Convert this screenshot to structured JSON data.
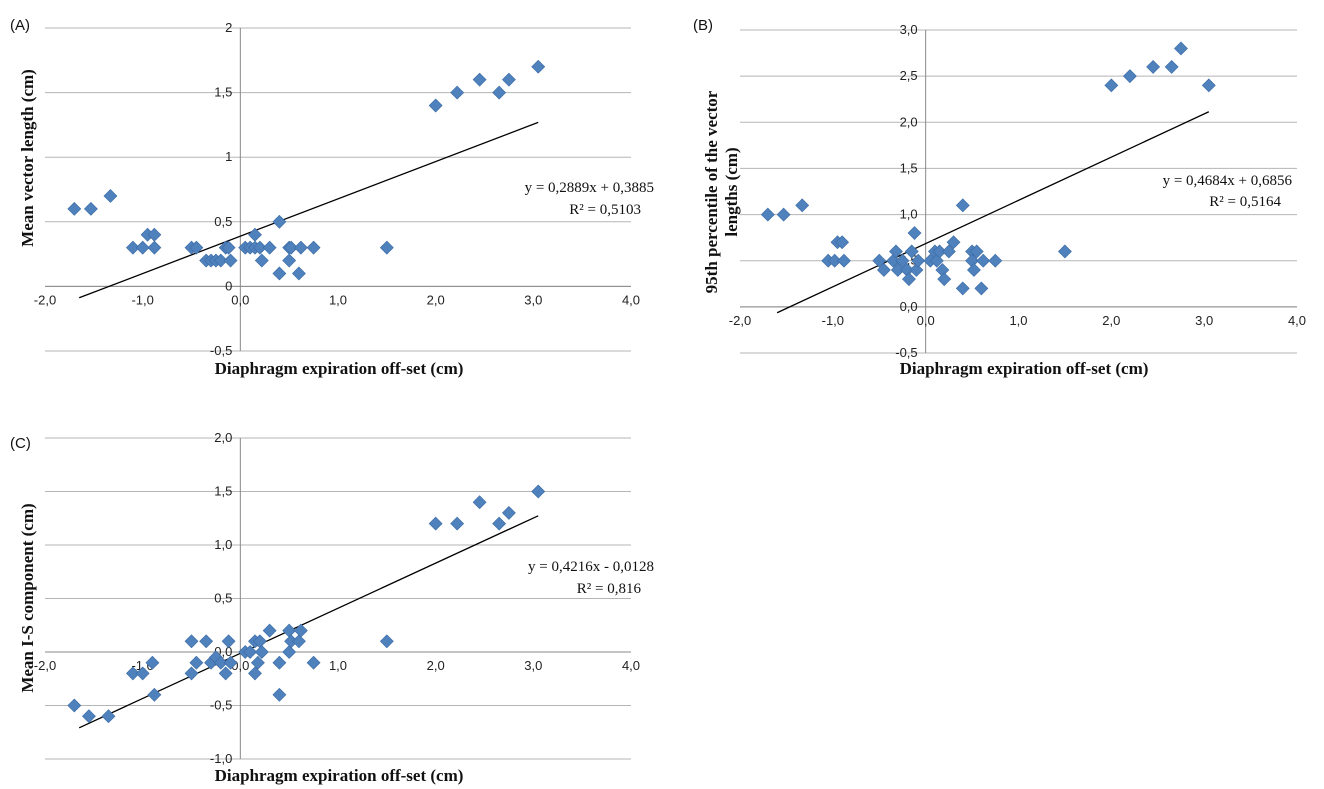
{
  "chart_data": [
    {
      "id": "A",
      "type": "scatter",
      "panel_label": "(A)",
      "xlabel": "Diaphragm  expiration off-set (cm)",
      "ylabel": "Mean vector length (cm)",
      "xlim": [
        -2,
        4
      ],
      "ylim": [
        -0.5,
        2
      ],
      "xticks": [
        "-2,0",
        "-1,0",
        "0,0",
        "1,0",
        "2,0",
        "3,0",
        "4,0"
      ],
      "yticks": [
        "-0,5",
        "0",
        "0,5",
        "1",
        "1,5",
        "2"
      ],
      "equation": "y = 0,2889x + 0,3885",
      "r2": "R² = 0,5103",
      "trendline": {
        "slope": 0.2889,
        "intercept": 0.3885,
        "x_range": [
          -1.65,
          3.05
        ]
      },
      "points": [
        [
          -1.7,
          0.6
        ],
        [
          -1.53,
          0.6
        ],
        [
          -1.33,
          0.7
        ],
        [
          -1.1,
          0.3
        ],
        [
          -1.0,
          0.3
        ],
        [
          -0.95,
          0.4
        ],
        [
          -0.88,
          0.4
        ],
        [
          -0.88,
          0.3
        ],
        [
          -0.5,
          0.3
        ],
        [
          -0.45,
          0.3
        ],
        [
          -0.35,
          0.2
        ],
        [
          -0.3,
          0.2
        ],
        [
          -0.25,
          0.2
        ],
        [
          -0.2,
          0.2
        ],
        [
          -0.15,
          0.3
        ],
        [
          -0.12,
          0.3
        ],
        [
          -0.1,
          0.2
        ],
        [
          0.05,
          0.3
        ],
        [
          0.1,
          0.3
        ],
        [
          0.15,
          0.4
        ],
        [
          0.15,
          0.3
        ],
        [
          0.2,
          0.3
        ],
        [
          0.22,
          0.2
        ],
        [
          0.3,
          0.3
        ],
        [
          0.4,
          0.5
        ],
        [
          0.4,
          0.1
        ],
        [
          0.5,
          0.3
        ],
        [
          0.5,
          0.2
        ],
        [
          0.52,
          0.3
        ],
        [
          0.6,
          0.1
        ],
        [
          0.62,
          0.3
        ],
        [
          0.75,
          0.3
        ],
        [
          1.5,
          0.3
        ],
        [
          2.0,
          1.4
        ],
        [
          2.22,
          1.5
        ],
        [
          2.45,
          1.6
        ],
        [
          2.65,
          1.5
        ],
        [
          2.75,
          1.6
        ],
        [
          3.05,
          1.7
        ]
      ]
    },
    {
      "id": "B",
      "type": "scatter",
      "panel_label": "(B)",
      "xlabel": "Diaphragm  expiration off-set (cm)",
      "ylabel_lines": [
        "95th percentile of the vector",
        "lengths (cm)"
      ],
      "xlim": [
        -2,
        4
      ],
      "ylim": [
        -0.5,
        3
      ],
      "xticks": [
        "-2,0",
        "-1,0",
        "0,0",
        "1,0",
        "2,0",
        "3,0",
        "4,0"
      ],
      "yticks": [
        "-0,5",
        "0,0",
        "0,5",
        "1,0",
        "1,5",
        "2,0",
        "2,5",
        "3,0"
      ],
      "equation": "y = 0,4684x  + 0,6856",
      "r2": "R² = 0,5164",
      "trendline": {
        "slope": 0.4684,
        "intercept": 0.6856,
        "x_range": [
          -1.6,
          3.05
        ]
      },
      "points": [
        [
          -1.7,
          1.0
        ],
        [
          -1.53,
          1.0
        ],
        [
          -1.33,
          1.1
        ],
        [
          -1.05,
          0.5
        ],
        [
          -0.98,
          0.5
        ],
        [
          -0.95,
          0.7
        ],
        [
          -0.9,
          0.7
        ],
        [
          -0.88,
          0.5
        ],
        [
          -0.5,
          0.5
        ],
        [
          -0.45,
          0.4
        ],
        [
          -0.35,
          0.5
        ],
        [
          -0.32,
          0.6
        ],
        [
          -0.3,
          0.4
        ],
        [
          -0.25,
          0.5
        ],
        [
          -0.2,
          0.4
        ],
        [
          -0.18,
          0.3
        ],
        [
          -0.15,
          0.6
        ],
        [
          -0.12,
          0.8
        ],
        [
          -0.1,
          0.4
        ],
        [
          -0.08,
          0.5
        ],
        [
          0.05,
          0.5
        ],
        [
          0.1,
          0.6
        ],
        [
          0.12,
          0.5
        ],
        [
          0.15,
          0.6
        ],
        [
          0.18,
          0.4
        ],
        [
          0.2,
          0.3
        ],
        [
          0.25,
          0.6
        ],
        [
          0.3,
          0.7
        ],
        [
          0.4,
          1.1
        ],
        [
          0.4,
          0.2
        ],
        [
          0.5,
          0.6
        ],
        [
          0.5,
          0.5
        ],
        [
          0.52,
          0.4
        ],
        [
          0.55,
          0.6
        ],
        [
          0.6,
          0.2
        ],
        [
          0.62,
          0.5
        ],
        [
          0.75,
          0.5
        ],
        [
          1.5,
          0.6
        ],
        [
          2.0,
          2.4
        ],
        [
          2.2,
          2.5
        ],
        [
          2.45,
          2.6
        ],
        [
          2.65,
          2.6
        ],
        [
          2.75,
          2.8
        ],
        [
          3.05,
          2.4
        ]
      ]
    },
    {
      "id": "C",
      "type": "scatter",
      "panel_label": "(C)",
      "xlabel": "Diaphragm  expiration off-set (cm)",
      "ylabel": "Mean I-S component  (cm)",
      "xlim": [
        -2,
        4
      ],
      "ylim": [
        -1,
        2
      ],
      "xticks": [
        "-2,0",
        "-1,0",
        "0,0",
        "1,0",
        "2,0",
        "3,0",
        "4,0"
      ],
      "yticks": [
        "-1,0",
        "-0,5",
        "0,0",
        "0,5",
        "1,0",
        "1,5",
        "2,0"
      ],
      "equation": "y = 0,4216x  - 0,0128",
      "r2": "R² = 0,816",
      "trendline": {
        "slope": 0.4216,
        "intercept": -0.0128,
        "x_range": [
          -1.65,
          3.05
        ]
      },
      "points": [
        [
          -1.7,
          -0.5
        ],
        [
          -1.55,
          -0.6
        ],
        [
          -1.35,
          -0.6
        ],
        [
          -1.1,
          -0.2
        ],
        [
          -1.0,
          -0.2
        ],
        [
          -0.9,
          -0.1
        ],
        [
          -0.88,
          -0.4
        ],
        [
          -0.5,
          0.1
        ],
        [
          -0.5,
          -0.2
        ],
        [
          -0.45,
          -0.1
        ],
        [
          -0.35,
          0.1
        ],
        [
          -0.3,
          -0.1
        ],
        [
          -0.25,
          -0.05
        ],
        [
          -0.2,
          -0.1
        ],
        [
          -0.15,
          -0.2
        ],
        [
          -0.12,
          0.1
        ],
        [
          -0.1,
          -0.1
        ],
        [
          0.05,
          0.0
        ],
        [
          0.1,
          0.0
        ],
        [
          0.15,
          0.1
        ],
        [
          0.15,
          -0.2
        ],
        [
          0.18,
          -0.1
        ],
        [
          0.2,
          0.1
        ],
        [
          0.22,
          0.0
        ],
        [
          0.3,
          0.2
        ],
        [
          0.4,
          -0.1
        ],
        [
          0.4,
          -0.4
        ],
        [
          0.5,
          0.2
        ],
        [
          0.5,
          0.0
        ],
        [
          0.52,
          0.1
        ],
        [
          0.6,
          0.1
        ],
        [
          0.62,
          0.2
        ],
        [
          0.75,
          -0.1
        ],
        [
          1.5,
          0.1
        ],
        [
          2.0,
          1.2
        ],
        [
          2.22,
          1.2
        ],
        [
          2.45,
          1.4
        ],
        [
          2.65,
          1.2
        ],
        [
          2.75,
          1.3
        ],
        [
          3.05,
          1.5
        ]
      ]
    }
  ],
  "colors": {
    "marker": "#4f81bd",
    "marker_edge": "#3a6aa3",
    "grid": "#b5b5b5",
    "trend": "#000000"
  }
}
